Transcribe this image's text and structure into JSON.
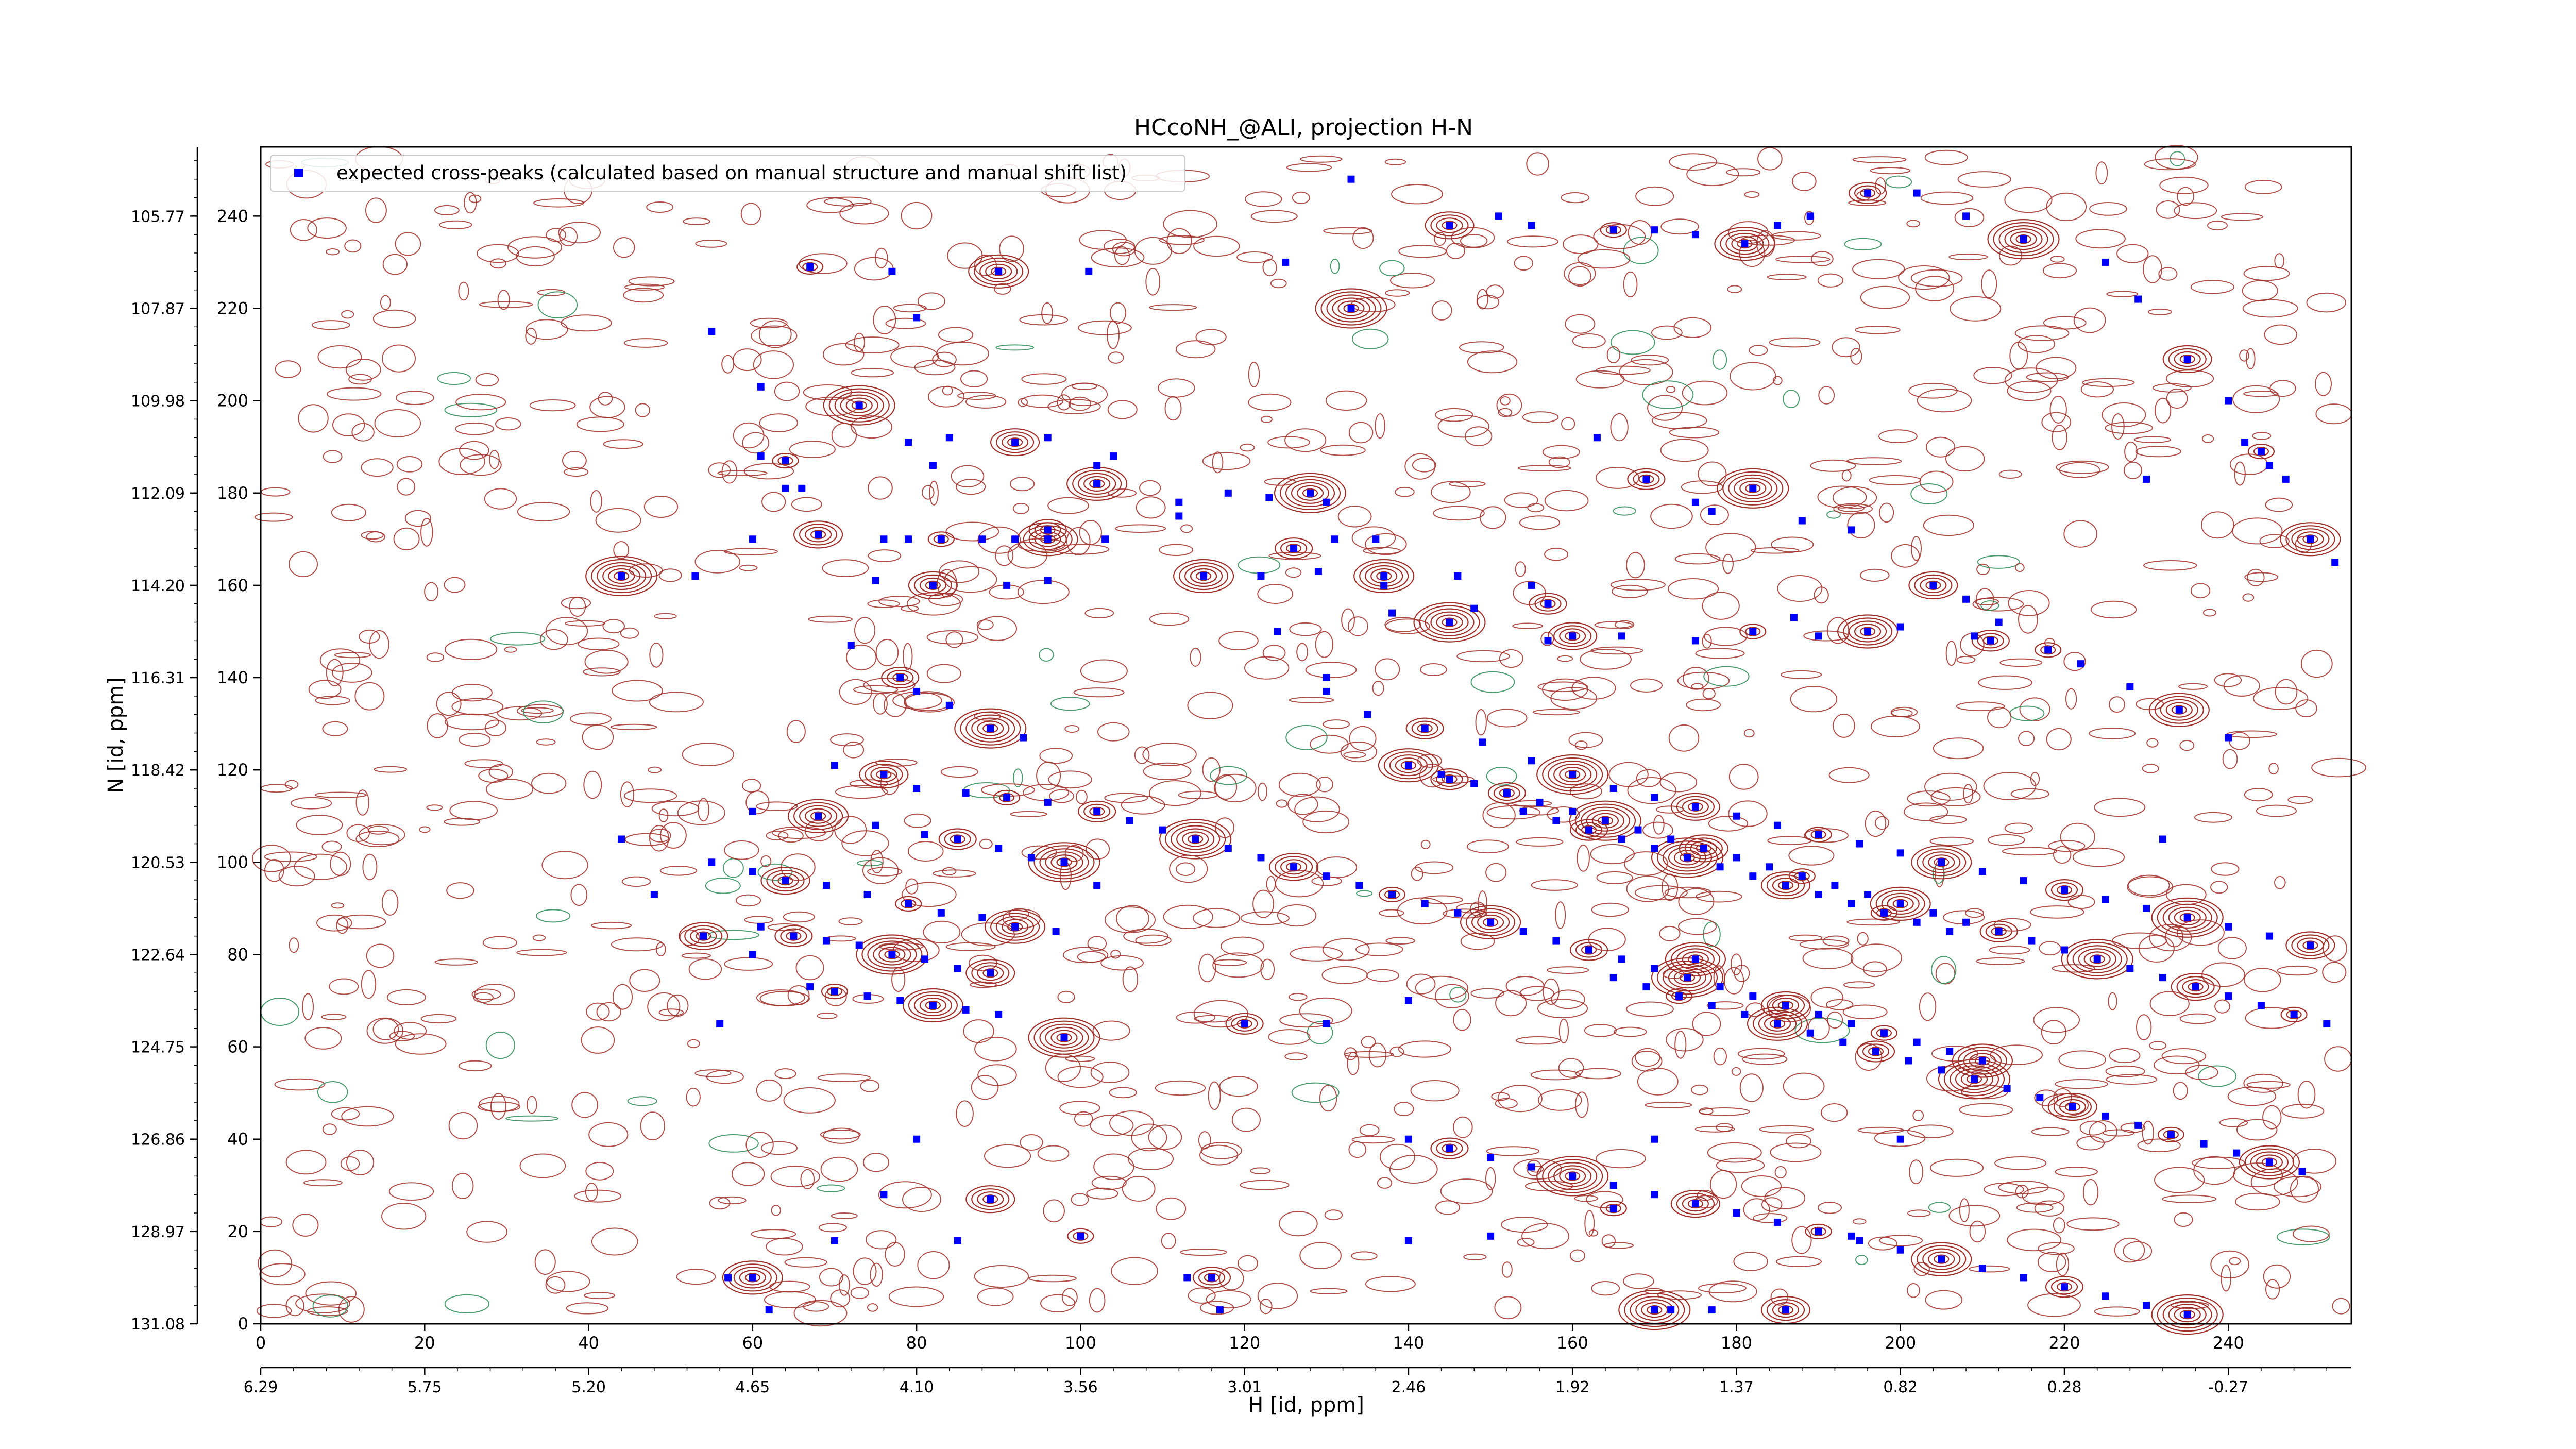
{
  "chart_data": {
    "type": "scatter",
    "title": "HCcoNH_@ALI, projection H-N",
    "xlabel": "H [id, ppm]",
    "ylabel": "N [id, ppm]",
    "xlim": [
      0,
      255
    ],
    "ylim": [
      0,
      255
    ],
    "x_index_ticks": [
      "0",
      "20",
      "40",
      "60",
      "80",
      "100",
      "120",
      "140",
      "160",
      "180",
      "200",
      "220",
      "240"
    ],
    "x_ppm_ticks": [
      "6.29",
      "5.75",
      "5.20",
      "4.65",
      "4.10",
      "3.56",
      "3.01",
      "2.46",
      "1.92",
      "1.37",
      "0.82",
      "0.28",
      "-0.27"
    ],
    "y_index_ticks": [
      "0",
      "20",
      "40",
      "60",
      "80",
      "100",
      "120",
      "140",
      "160",
      "180",
      "200",
      "220",
      "240"
    ],
    "y_ppm_ticks": [
      "131.08",
      "128.97",
      "126.86",
      "124.75",
      "122.64",
      "120.53",
      "118.42",
      "116.31",
      "114.20",
      "112.09",
      "109.98",
      "107.87",
      "105.77"
    ],
    "legend": {
      "label": "expected cross-peaks (calculated based on manual structure and manual shift list)",
      "position": "upper-left",
      "marker_color": "#0000ff"
    },
    "contour_colors": {
      "positive": "#a0302a",
      "negative": "#2e8b57"
    },
    "peaks": [
      [
        67,
        229
      ],
      [
        77,
        228
      ],
      [
        80,
        218
      ],
      [
        90,
        228
      ],
      [
        101,
        228
      ],
      [
        102,
        186
      ],
      [
        145,
        118
      ],
      [
        55,
        215
      ],
      [
        61,
        203
      ],
      [
        73,
        199
      ],
      [
        79,
        191
      ],
      [
        84,
        192
      ],
      [
        92,
        191
      ],
      [
        96,
        192
      ],
      [
        61,
        188
      ],
      [
        64,
        187
      ],
      [
        82,
        186
      ],
      [
        104,
        188
      ],
      [
        102,
        182
      ],
      [
        64,
        181
      ],
      [
        66,
        181
      ],
      [
        96,
        172
      ],
      [
        118,
        180
      ],
      [
        123,
        179
      ],
      [
        128,
        180
      ],
      [
        130,
        178
      ],
      [
        60,
        170
      ],
      [
        68,
        171
      ],
      [
        76,
        170
      ],
      [
        79,
        170
      ],
      [
        83,
        170
      ],
      [
        88,
        170
      ],
      [
        92,
        170
      ],
      [
        96,
        170
      ],
      [
        103,
        170
      ],
      [
        112,
        175
      ],
      [
        126,
        168
      ],
      [
        131,
        170
      ],
      [
        136,
        170
      ],
      [
        44,
        162
      ],
      [
        53,
        162
      ],
      [
        75,
        161
      ],
      [
        82,
        160
      ],
      [
        91,
        160
      ],
      [
        96,
        161
      ],
      [
        115,
        162
      ],
      [
        122,
        162
      ],
      [
        129,
        163
      ],
      [
        137,
        162
      ],
      [
        146,
        162
      ],
      [
        155,
        160
      ],
      [
        157,
        156
      ],
      [
        137,
        160
      ],
      [
        138,
        154
      ],
      [
        145,
        152
      ],
      [
        148,
        155
      ],
      [
        157,
        148
      ],
      [
        160,
        149
      ],
      [
        166,
        149
      ],
      [
        175,
        148
      ],
      [
        182,
        150
      ],
      [
        187,
        153
      ],
      [
        190,
        149
      ],
      [
        196,
        150
      ],
      [
        200,
        151
      ],
      [
        209,
        149
      ],
      [
        211,
        148
      ],
      [
        230,
        183
      ],
      [
        112,
        178
      ],
      [
        133,
        220
      ],
      [
        125,
        230
      ],
      [
        133,
        248
      ],
      [
        145,
        238
      ],
      [
        151,
        240
      ],
      [
        155,
        238
      ],
      [
        165,
        237
      ],
      [
        170,
        237
      ],
      [
        175,
        236
      ],
      [
        181,
        234
      ],
      [
        185,
        238
      ],
      [
        189,
        240
      ],
      [
        196,
        245
      ],
      [
        202,
        245
      ],
      [
        208,
        240
      ],
      [
        215,
        235
      ],
      [
        225,
        230
      ],
      [
        229,
        222
      ],
      [
        235,
        209
      ],
      [
        240,
        200
      ],
      [
        242,
        191
      ],
      [
        244,
        189
      ],
      [
        245,
        186
      ],
      [
        247,
        183
      ],
      [
        250,
        170
      ],
      [
        253,
        165
      ],
      [
        163,
        192
      ],
      [
        169,
        183
      ],
      [
        175,
        178
      ],
      [
        177,
        176
      ],
      [
        182,
        181
      ],
      [
        188,
        174
      ],
      [
        194,
        172
      ],
      [
        204,
        160
      ],
      [
        208,
        157
      ],
      [
        212,
        152
      ],
      [
        218,
        146
      ],
      [
        222,
        143
      ],
      [
        228,
        138
      ],
      [
        234,
        133
      ],
      [
        240,
        127
      ],
      [
        72,
        147
      ],
      [
        78,
        140
      ],
      [
        80,
        137
      ],
      [
        84,
        134
      ],
      [
        89,
        129
      ],
      [
        93,
        127
      ],
      [
        70,
        121
      ],
      [
        76,
        119
      ],
      [
        80,
        116
      ],
      [
        86,
        115
      ],
      [
        91,
        114
      ],
      [
        96,
        113
      ],
      [
        60,
        111
      ],
      [
        68,
        110
      ],
      [
        75,
        108
      ],
      [
        81,
        106
      ],
      [
        85,
        105
      ],
      [
        90,
        103
      ],
      [
        94,
        101
      ],
      [
        98,
        100
      ],
      [
        55,
        100
      ],
      [
        60,
        98
      ],
      [
        64,
        96
      ],
      [
        69,
        95
      ],
      [
        74,
        93
      ],
      [
        79,
        91
      ],
      [
        83,
        89
      ],
      [
        88,
        88
      ],
      [
        92,
        86
      ],
      [
        97,
        85
      ],
      [
        61,
        86
      ],
      [
        65,
        84
      ],
      [
        69,
        83
      ],
      [
        73,
        82
      ],
      [
        77,
        80
      ],
      [
        81,
        79
      ],
      [
        85,
        77
      ],
      [
        89,
        76
      ],
      [
        60,
        80
      ],
      [
        67,
        73
      ],
      [
        70,
        72
      ],
      [
        74,
        71
      ],
      [
        78,
        70
      ],
      [
        82,
        69
      ],
      [
        86,
        68
      ],
      [
        90,
        67
      ],
      [
        102,
        111
      ],
      [
        106,
        109
      ],
      [
        110,
        107
      ],
      [
        114,
        105
      ],
      [
        118,
        103
      ],
      [
        122,
        101
      ],
      [
        126,
        99
      ],
      [
        130,
        97
      ],
      [
        134,
        95
      ],
      [
        138,
        93
      ],
      [
        142,
        91
      ],
      [
        146,
        89
      ],
      [
        150,
        87
      ],
      [
        154,
        85
      ],
      [
        158,
        83
      ],
      [
        162,
        81
      ],
      [
        166,
        79
      ],
      [
        170,
        77
      ],
      [
        174,
        75
      ],
      [
        178,
        73
      ],
      [
        182,
        71
      ],
      [
        186,
        69
      ],
      [
        190,
        67
      ],
      [
        194,
        65
      ],
      [
        198,
        63
      ],
      [
        202,
        61
      ],
      [
        206,
        59
      ],
      [
        210,
        57
      ],
      [
        154,
        111
      ],
      [
        158,
        109
      ],
      [
        162,
        107
      ],
      [
        166,
        105
      ],
      [
        170,
        103
      ],
      [
        174,
        101
      ],
      [
        178,
        99
      ],
      [
        182,
        97
      ],
      [
        186,
        95
      ],
      [
        190,
        93
      ],
      [
        194,
        91
      ],
      [
        198,
        89
      ],
      [
        202,
        87
      ],
      [
        206,
        85
      ],
      [
        140,
        121
      ],
      [
        144,
        119
      ],
      [
        148,
        117
      ],
      [
        152,
        115
      ],
      [
        156,
        113
      ],
      [
        160,
        111
      ],
      [
        164,
        109
      ],
      [
        168,
        107
      ],
      [
        172,
        105
      ],
      [
        176,
        103
      ],
      [
        180,
        101
      ],
      [
        184,
        99
      ],
      [
        188,
        97
      ],
      [
        192,
        95
      ],
      [
        196,
        93
      ],
      [
        200,
        91
      ],
      [
        204,
        89
      ],
      [
        208,
        87
      ],
      [
        212,
        85
      ],
      [
        216,
        83
      ],
      [
        220,
        81
      ],
      [
        224,
        79
      ],
      [
        228,
        77
      ],
      [
        232,
        75
      ],
      [
        236,
        73
      ],
      [
        240,
        71
      ],
      [
        244,
        69
      ],
      [
        248,
        67
      ],
      [
        252,
        65
      ],
      [
        232,
        105
      ],
      [
        175,
        79
      ],
      [
        130,
        137
      ],
      [
        135,
        132
      ],
      [
        142,
        129
      ],
      [
        149,
        126
      ],
      [
        155,
        122
      ],
      [
        160,
        119
      ],
      [
        165,
        116
      ],
      [
        170,
        114
      ],
      [
        175,
        112
      ],
      [
        180,
        110
      ],
      [
        185,
        108
      ],
      [
        190,
        106
      ],
      [
        195,
        104
      ],
      [
        200,
        102
      ],
      [
        205,
        100
      ],
      [
        210,
        98
      ],
      [
        215,
        96
      ],
      [
        220,
        94
      ],
      [
        225,
        92
      ],
      [
        230,
        90
      ],
      [
        235,
        88
      ],
      [
        240,
        86
      ],
      [
        245,
        84
      ],
      [
        250,
        82
      ],
      [
        165,
        75
      ],
      [
        169,
        73
      ],
      [
        173,
        71
      ],
      [
        177,
        69
      ],
      [
        181,
        67
      ],
      [
        185,
        65
      ],
      [
        189,
        63
      ],
      [
        193,
        61
      ],
      [
        197,
        59
      ],
      [
        201,
        57
      ],
      [
        205,
        55
      ],
      [
        209,
        53
      ],
      [
        213,
        51
      ],
      [
        217,
        49
      ],
      [
        221,
        47
      ],
      [
        225,
        45
      ],
      [
        229,
        43
      ],
      [
        233,
        41
      ],
      [
        237,
        39
      ],
      [
        241,
        37
      ],
      [
        245,
        35
      ],
      [
        249,
        33
      ],
      [
        140,
        40
      ],
      [
        145,
        38
      ],
      [
        150,
        36
      ],
      [
        155,
        34
      ],
      [
        160,
        32
      ],
      [
        165,
        30
      ],
      [
        170,
        28
      ],
      [
        175,
        26
      ],
      [
        180,
        24
      ],
      [
        185,
        22
      ],
      [
        190,
        20
      ],
      [
        195,
        18
      ],
      [
        200,
        16
      ],
      [
        205,
        14
      ],
      [
        210,
        12
      ],
      [
        215,
        10
      ],
      [
        220,
        8
      ],
      [
        225,
        6
      ],
      [
        230,
        4
      ],
      [
        235,
        2
      ],
      [
        80,
        40
      ],
      [
        76,
        28
      ],
      [
        89,
        27
      ],
      [
        70,
        18
      ],
      [
        85,
        18
      ],
      [
        100,
        19
      ],
      [
        140,
        18
      ],
      [
        150,
        19
      ],
      [
        60,
        10
      ],
      [
        57,
        10
      ],
      [
        113,
        10
      ],
      [
        116,
        10
      ],
      [
        117,
        3
      ],
      [
        62,
        3
      ],
      [
        170,
        3
      ],
      [
        172,
        3
      ],
      [
        177,
        3
      ],
      [
        186,
        3
      ],
      [
        194,
        19
      ],
      [
        170,
        40
      ],
      [
        165,
        25
      ],
      [
        130,
        140
      ],
      [
        124,
        150
      ],
      [
        115,
        162
      ],
      [
        102,
        182
      ],
      [
        200,
        40
      ],
      [
        120,
        65
      ],
      [
        130,
        65
      ],
      [
        140,
        70
      ],
      [
        98,
        62
      ],
      [
        56,
        65
      ],
      [
        48,
        93
      ],
      [
        54,
        84
      ],
      [
        44,
        105
      ],
      [
        102,
        95
      ],
      [
        98,
        100
      ]
    ]
  }
}
